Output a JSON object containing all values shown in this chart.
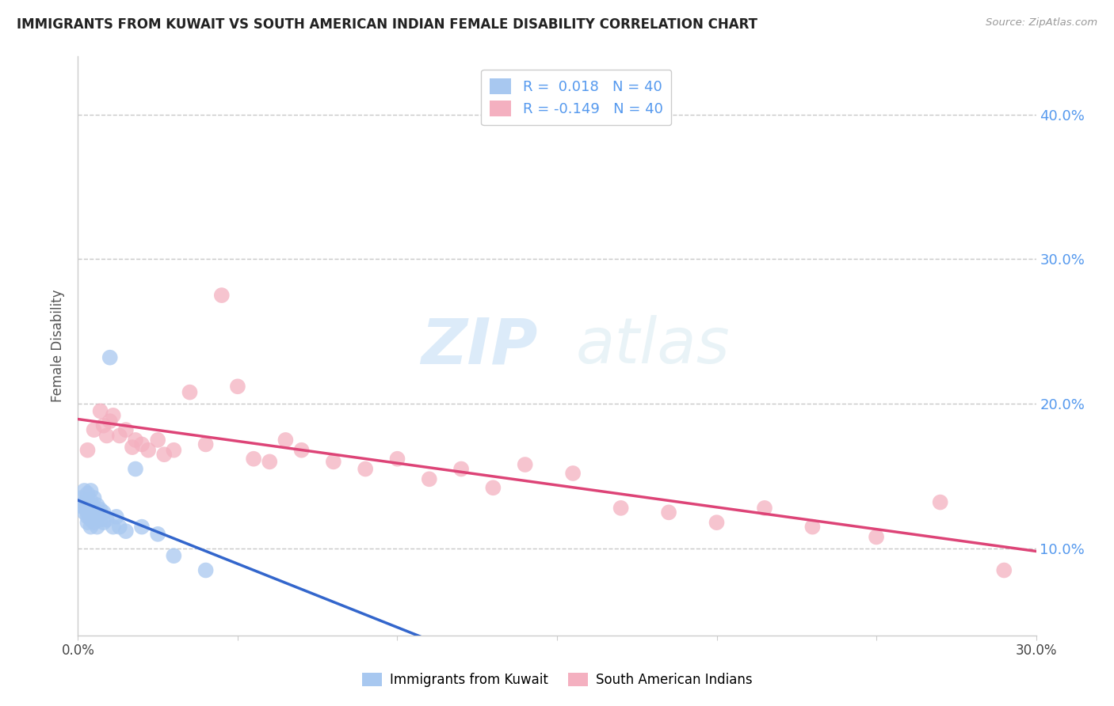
{
  "title": "IMMIGRANTS FROM KUWAIT VS SOUTH AMERICAN INDIAN FEMALE DISABILITY CORRELATION CHART",
  "source": "Source: ZipAtlas.com",
  "ylabel": "Female Disability",
  "xlim": [
    0.0,
    0.3
  ],
  "ylim": [
    0.04,
    0.44
  ],
  "xticks": [
    0.0,
    0.05,
    0.1,
    0.15,
    0.2,
    0.25,
    0.3
  ],
  "right_yticks": [
    0.1,
    0.2,
    0.3,
    0.4
  ],
  "right_ytick_labels": [
    "10.0%",
    "20.0%",
    "30.0%",
    "40.0%"
  ],
  "legend_r_blue": "R =  0.018",
  "legend_n_blue": "N = 40",
  "legend_r_pink": "R = -0.149",
  "legend_n_pink": "N = 40",
  "blue_color": "#a8c8f0",
  "pink_color": "#f4b0c0",
  "blue_line_color": "#3366cc",
  "pink_line_color": "#dd4477",
  "watermark_zip": "ZIP",
  "watermark_atlas": "atlas",
  "legend_label_blue": "Immigrants from Kuwait",
  "legend_label_pink": "South American Indians",
  "blue_scatter_x": [
    0.001,
    0.001,
    0.002,
    0.002,
    0.002,
    0.002,
    0.003,
    0.003,
    0.003,
    0.003,
    0.003,
    0.003,
    0.004,
    0.004,
    0.004,
    0.004,
    0.004,
    0.005,
    0.005,
    0.005,
    0.005,
    0.005,
    0.006,
    0.006,
    0.006,
    0.007,
    0.007,
    0.008,
    0.008,
    0.009,
    0.01,
    0.011,
    0.012,
    0.013,
    0.015,
    0.018,
    0.02,
    0.025,
    0.03,
    0.04
  ],
  "blue_scatter_y": [
    0.13,
    0.135,
    0.128,
    0.132,
    0.14,
    0.125,
    0.122,
    0.128,
    0.133,
    0.138,
    0.118,
    0.125,
    0.12,
    0.127,
    0.133,
    0.14,
    0.115,
    0.122,
    0.128,
    0.135,
    0.118,
    0.125,
    0.115,
    0.122,
    0.13,
    0.12,
    0.127,
    0.118,
    0.125,
    0.12,
    0.232,
    0.115,
    0.122,
    0.115,
    0.112,
    0.155,
    0.115,
    0.11,
    0.095,
    0.085
  ],
  "pink_scatter_x": [
    0.003,
    0.005,
    0.007,
    0.008,
    0.009,
    0.01,
    0.011,
    0.013,
    0.015,
    0.017,
    0.018,
    0.02,
    0.022,
    0.025,
    0.027,
    0.03,
    0.035,
    0.04,
    0.045,
    0.05,
    0.055,
    0.06,
    0.065,
    0.07,
    0.08,
    0.09,
    0.1,
    0.11,
    0.12,
    0.13,
    0.14,
    0.155,
    0.17,
    0.185,
    0.2,
    0.215,
    0.23,
    0.25,
    0.27,
    0.29
  ],
  "pink_scatter_y": [
    0.168,
    0.182,
    0.195,
    0.185,
    0.178,
    0.188,
    0.192,
    0.178,
    0.182,
    0.17,
    0.175,
    0.172,
    0.168,
    0.175,
    0.165,
    0.168,
    0.208,
    0.172,
    0.275,
    0.212,
    0.162,
    0.16,
    0.175,
    0.168,
    0.16,
    0.155,
    0.162,
    0.148,
    0.155,
    0.142,
    0.158,
    0.152,
    0.128,
    0.125,
    0.118,
    0.128,
    0.115,
    0.108,
    0.132,
    0.085
  ]
}
